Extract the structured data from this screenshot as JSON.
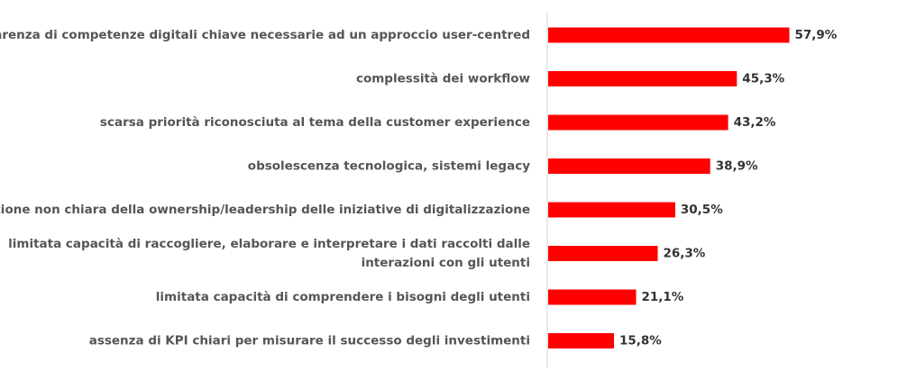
{
  "chart_data": {
    "type": "bar",
    "orientation": "horizontal",
    "categories": [
      [
        "carenza di competenze digitali chiave necessarie ad un approccio user-centred"
      ],
      [
        "complessità dei workflow"
      ],
      [
        "scarsa priorità riconosciuta al tema della customer experience"
      ],
      [
        "obsolescenza tecnologica, sistemi legacy"
      ],
      [
        "definizione non chiara della ownership/leadership delle iniziative di digitalizzazione"
      ],
      [
        "limitata capacità di raccogliere, elaborare e interpretare i dati raccolti dalle",
        "interazioni con gli utenti"
      ],
      [
        "limitata capacità di comprendere i bisogni degli utenti"
      ],
      [
        "assenza di KPI chiari per misurare il successo degli investimenti"
      ]
    ],
    "values": [
      57.9,
      45.3,
      43.2,
      38.9,
      30.5,
      26.3,
      21.1,
      15.8
    ],
    "value_labels": [
      "57,9%",
      "45,3%",
      "43,2%",
      "38,9%",
      "30,5%",
      "26,3%",
      "21,1%",
      "15,8%"
    ],
    "bar_color": "#ff0000",
    "xlim": [
      0,
      100
    ],
    "grid": false,
    "legend": "none"
  }
}
